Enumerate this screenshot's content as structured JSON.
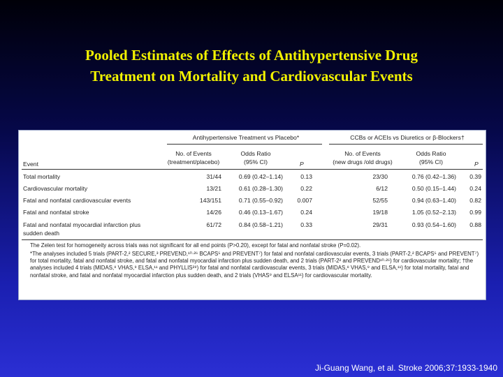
{
  "title_line1": "Pooled Estimates of Effects of Antihypertensive Drug",
  "title_line2": "Treatment on Mortality and Cardiovascular Events",
  "table": {
    "group1": "Antihypertensive Treatment vs Placebo*",
    "group2": "CCBs or ACEIs vs Diuretics or β-Blockers†",
    "col_event": "Event",
    "col_events1_l1": "No. of Events",
    "col_events1_l2": "(treatment/placebo)",
    "col_or_l1": "Odds Ratio",
    "col_or_l2": "(95% CI)",
    "col_p": "P",
    "col_events2_l1": "No. of Events",
    "col_events2_l2": "(new drugs /old drugs)",
    "rows": [
      {
        "event": "Total mortality",
        "ev1": "31/44",
        "or1": "0.69 (0.42–1.14)",
        "p1": "0.13",
        "ev2": "23/30",
        "or2": "0.76 (0.42–1.36)",
        "p2": "0.39"
      },
      {
        "event": "Cardiovascular mortality",
        "ev1": "13/21",
        "or1": "0.61 (0.28–1.30)",
        "p1": "0.22",
        "ev2": "6/12",
        "or2": "0.50 (0.15–1.44)",
        "p2": "0.24"
      },
      {
        "event": "Fatal and nonfatal cardiovascular events",
        "ev1": "143/151",
        "or1": "0.71 (0.55–0.92)",
        "p1": "0.007",
        "ev2": "52/55",
        "or2": "0.94 (0.63–1.40)",
        "p2": "0.82"
      },
      {
        "event": "Fatal and nonfatal stroke",
        "ev1": "14/26",
        "or1": "0.46 (0.13–1.67)",
        "p1": "0.24",
        "ev2": "19/18",
        "or2": "1.05 (0.52–2.13)",
        "p2": "0.99"
      },
      {
        "event": "Fatal and nonfatal myocardial infarction plus",
        "event2": "sudden death",
        "ev1": "61/72",
        "or1": "0.84 (0.58–1.21)",
        "p1": "0.33",
        "ev2": "29/31",
        "or2": "0.93 (0.54–1.60)",
        "p2": "0.88"
      }
    ],
    "footnote1": "The Zelen test for homogeneity across trials was not significant for all end points (P>0.20), except for fatal and nonfatal stroke (P=0.02).",
    "footnote2": "*The analyses included 5 trials (PART-2,² SECURE,³ PREVEND,¹⁰·²⁶ BCAPS⁵ and PREVENT⁷) for fatal and nonfatal cardiovascular events, 3 trials (PART-2,² BCAPS⁵ and PREVENT⁷) for total mortality, fatal and nonfatal stroke, and fatal and nonfatal myocardial infarction plus sudden death, and 2 trials (PART-2² and PREVEND¹⁰·²⁶) for cardiovascular mortality; †the analyses included 4 trials (MIDAS,⁸ VHAS,⁹ ELSA,¹¹ and PHYLLIS²⁹) for fatal and nonfatal cardiovascular events, 3 trials (MIDAS,⁸ VHAS,⁹ and ELSA,¹¹) for total mortality, fatal and nonfatal stroke, and fatal and nonfatal myocardial infarction plus sudden death, and 2 trials (VHAS⁹ and ELSA¹¹) for cardiovascular mortality."
  },
  "citation": "Ji-Guang Wang, et al. Stroke 2006;37:1933-1940"
}
